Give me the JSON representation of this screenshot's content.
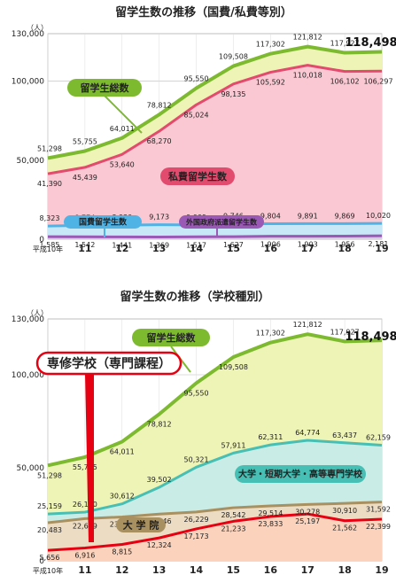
{
  "x_labels": [
    "平成10年",
    "11",
    "12",
    "13",
    "14",
    "15",
    "16",
    "17",
    "18",
    "19"
  ],
  "chart_data": [
    {
      "type": "area",
      "title": "留学生数の推移（国費/私費等別）",
      "unit": "（人）",
      "ylim": [
        0,
        130000
      ],
      "yticks": [
        "0",
        "50,000",
        "100,000",
        "130,000"
      ],
      "yticks_values": [
        0,
        50000,
        100000,
        130000
      ],
      "categories": [
        "平成10年",
        "11",
        "12",
        "13",
        "14",
        "15",
        "16",
        "17",
        "18",
        "19"
      ],
      "series": [
        {
          "name": "留学生総数",
          "color": "#7dba2f",
          "fill": "#eef3b6",
          "values": [
            51298,
            55755,
            64011,
            78812,
            95550,
            109508,
            117302,
            121812,
            117927,
            118498
          ],
          "labels": [
            "51,298",
            "55,755",
            "64,011",
            "78,812",
            "95,550",
            "109,508",
            "117,302",
            "121,812",
            "117,927",
            "118,498"
          ]
        },
        {
          "name": "私費留学生数",
          "color": "#e24a6e",
          "fill": "#f9c8d2",
          "values": [
            41390,
            45439,
            53640,
            68270,
            85024,
            98135,
            105592,
            110018,
            106102,
            106297
          ],
          "labels": [
            "41,390",
            "45,439",
            "53,640",
            "68,270",
            "85,024",
            "98,135",
            "105,592",
            "110,018",
            "106,102",
            "106,297"
          ]
        },
        {
          "name": "国費留学生数",
          "color": "#4fb3e6",
          "fill": "#c8e8f7",
          "values": [
            8323,
            8774,
            8930,
            9173,
            9009,
            9746,
            9804,
            9891,
            9869,
            10020
          ],
          "labels": [
            "8,323",
            "8,774",
            "8,930",
            "9,173",
            "9,009",
            "9,746",
            "9,804",
            "9,891",
            "9,869",
            "10,020"
          ]
        },
        {
          "name": "外国政府派遣留学生数",
          "color": "#9b59b6",
          "fill": "#dccbeb",
          "values": [
            1585,
            1542,
            1441,
            1369,
            1517,
            1627,
            1906,
            1903,
            1956,
            2181
          ],
          "labels": [
            "1,585",
            "1,542",
            "1,441",
            "1,369",
            "1,517",
            "1,627",
            "1,906",
            "1,903",
            "1,956",
            "2,181"
          ]
        }
      ]
    },
    {
      "type": "area",
      "title": "留学生数の推移（学校種別）",
      "unit": "（人）",
      "ylim": [
        0,
        130000
      ],
      "yticks": [
        "0",
        "50,000",
        "100,000",
        "130,000"
      ],
      "yticks_values": [
        0,
        50000,
        100000,
        130000
      ],
      "categories": [
        "平成10年",
        "11",
        "12",
        "13",
        "14",
        "15",
        "16",
        "17",
        "18",
        "19"
      ],
      "series": [
        {
          "name": "留学生総数",
          "color": "#7dba2f",
          "fill": "#eef3b6",
          "values": [
            51298,
            55755,
            64011,
            78812,
            95550,
            109508,
            117302,
            121812,
            117927,
            118498
          ],
          "labels": [
            "51,298",
            "55,755",
            "64,011",
            "78,812",
            "95,550",
            "109,508",
            "117,302",
            "121,812",
            "117,927",
            "118,498"
          ]
        },
        {
          "name": "大学・短期大学・高等専門学校",
          "color": "#48bfb4",
          "fill": "#c9ece6",
          "values": [
            25159,
            26160,
            30612,
            39502,
            50321,
            57911,
            62311,
            64774,
            63437,
            62159
          ],
          "labels": [
            "25,159",
            "26,160",
            "30,612",
            "39,502",
            "50,321",
            "57,911",
            "62,311",
            "64,774",
            "63,437",
            "62,159"
          ]
        },
        {
          "name": "大学院",
          "color": "#a89060",
          "fill": "#ecdcc3",
          "values": [
            20483,
            22679,
            23585,
            25146,
            26229,
            28542,
            29514,
            30278,
            30910,
            31592
          ],
          "labels": [
            "20,483",
            "22,679",
            "23,585",
            "25,146",
            "26,229",
            "28,542",
            "29,514",
            "30,278",
            "30,910",
            "31,592"
          ]
        },
        {
          "name": "専修学校（専門課程）",
          "color": "#e60012",
          "fill": "#fbd3bd",
          "values": [
            5656,
            6916,
            8815,
            12324,
            17173,
            21233,
            23833,
            25197,
            21562,
            22399
          ],
          "labels": [
            "5,656",
            "6,916",
            "8,815",
            "12,324",
            "17,173",
            "21,233",
            "23,833",
            "25,197",
            "21,562",
            "22,399"
          ]
        }
      ]
    }
  ]
}
